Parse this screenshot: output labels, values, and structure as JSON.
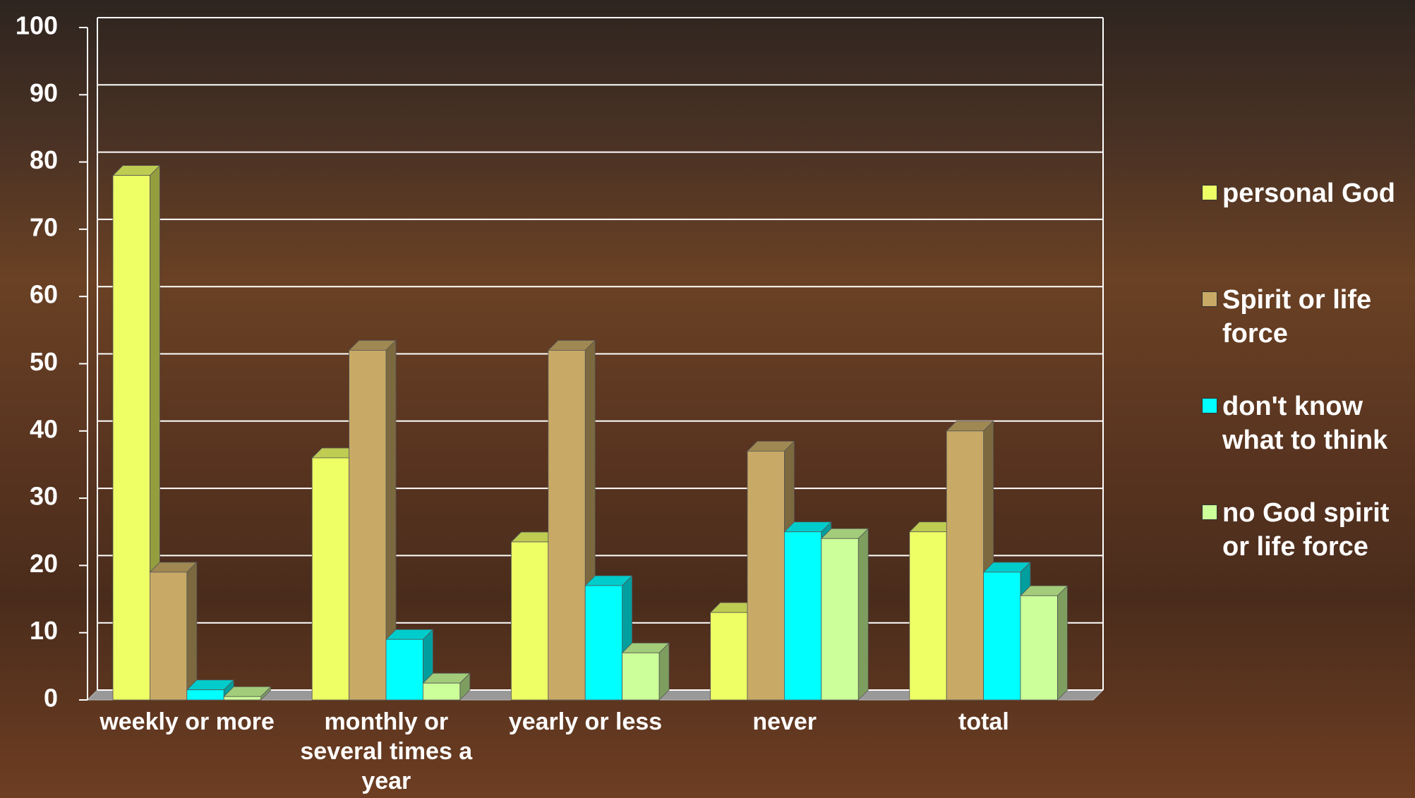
{
  "chart_data": {
    "type": "bar3d",
    "categories": [
      "weekly or more",
      "monthly or several times a year",
      "yearly or less",
      "never",
      "total"
    ],
    "series": [
      {
        "name": "personal God",
        "color": "#eeff66",
        "values": [
          78,
          36,
          23.5,
          13,
          25
        ]
      },
      {
        "name": "Spirit or life force",
        "color": "#c8aa66",
        "values": [
          19,
          52,
          52,
          37,
          40
        ]
      },
      {
        "name": "don't know what to think",
        "color": "#00ffff",
        "values": [
          1.5,
          9,
          17,
          25,
          19
        ]
      },
      {
        "name": "no God spirit or life force",
        "color": "#ccff99",
        "values": [
          0.5,
          2.5,
          7,
          24,
          15.5
        ]
      }
    ],
    "ylim": [
      0,
      100
    ],
    "yticks": [
      0,
      10,
      20,
      30,
      40,
      50,
      60,
      70,
      80,
      90,
      100
    ],
    "grid": true,
    "legend": "right"
  }
}
